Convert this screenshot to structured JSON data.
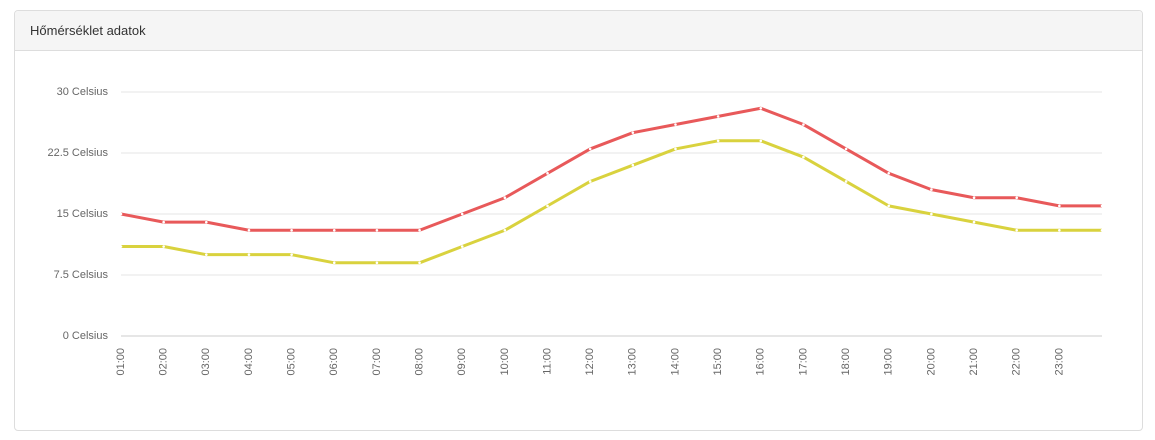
{
  "header": {
    "title": "Hőmérséklet adatok"
  },
  "chart_data": {
    "type": "line",
    "categories": [
      "01:00",
      "02:00",
      "03:00",
      "04:00",
      "05:00",
      "06:00",
      "07:00",
      "08:00",
      "09:00",
      "10:00",
      "11:00",
      "12:00",
      "13:00",
      "14:00",
      "15:00",
      "16:00",
      "17:00",
      "18:00",
      "19:00",
      "20:00",
      "21:00",
      "22:00",
      "23:00",
      null
    ],
    "series": [
      {
        "color": "#e8595a",
        "values": [
          15,
          14,
          14,
          13,
          13,
          13,
          13,
          13,
          15,
          17,
          20,
          23,
          25,
          26,
          27,
          28,
          26,
          23,
          20,
          18,
          17,
          17,
          16,
          16
        ]
      },
      {
        "color": "#d9d23e",
        "values": [
          11,
          11,
          10,
          10,
          10,
          9,
          9,
          9,
          11,
          13,
          16,
          19,
          21,
          23,
          24,
          24,
          22,
          19,
          16,
          15,
          14,
          13,
          13,
          13
        ]
      }
    ],
    "ylim": [
      0,
      30
    ],
    "yticks": [
      {
        "value": 0,
        "label": "0 Celsius"
      },
      {
        "value": 7.5,
        "label": "7.5 Celsius"
      },
      {
        "value": 15,
        "label": "15 Celsius"
      },
      {
        "value": 22.5,
        "label": "22.5 Celsius"
      },
      {
        "value": 30,
        "label": "30 Celsius"
      }
    ],
    "grid": true
  }
}
